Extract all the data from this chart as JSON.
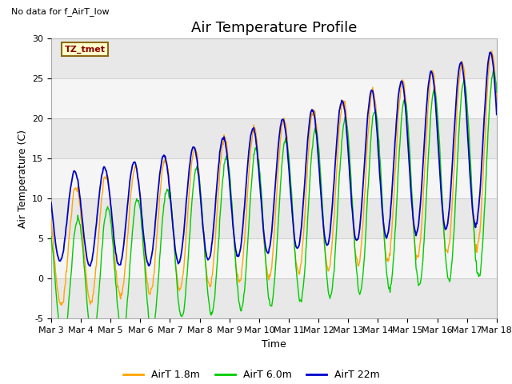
{
  "title": "Air Temperature Profile",
  "no_data_label": "No data for f_AirT_low",
  "tz_label": "TZ_tmet",
  "xlabel": "Time",
  "ylabel": "Air Temperature (C)",
  "ylim": [
    -5,
    30
  ],
  "yticks": [
    -5,
    0,
    5,
    10,
    15,
    20,
    25,
    30
  ],
  "xlim": [
    0,
    15
  ],
  "xtick_labels": [
    "Mar 3",
    "Mar 4",
    "Mar 5",
    "Mar 6",
    "Mar 7",
    "Mar 8",
    "Mar 9",
    "Mar 10",
    "Mar 11",
    "Mar 12",
    "Mar 13",
    "Mar 14",
    "Mar 15",
    "Mar 16",
    "Mar 17",
    "Mar 18"
  ],
  "color_18m": "#FFA500",
  "color_60m": "#00CC00",
  "color_22m": "#0000CC",
  "legend_labels": [
    "AirT 1.8m",
    "AirT 6.0m",
    "AirT 22m"
  ],
  "title_fontsize": 13,
  "label_fontsize": 9,
  "tick_fontsize": 8
}
